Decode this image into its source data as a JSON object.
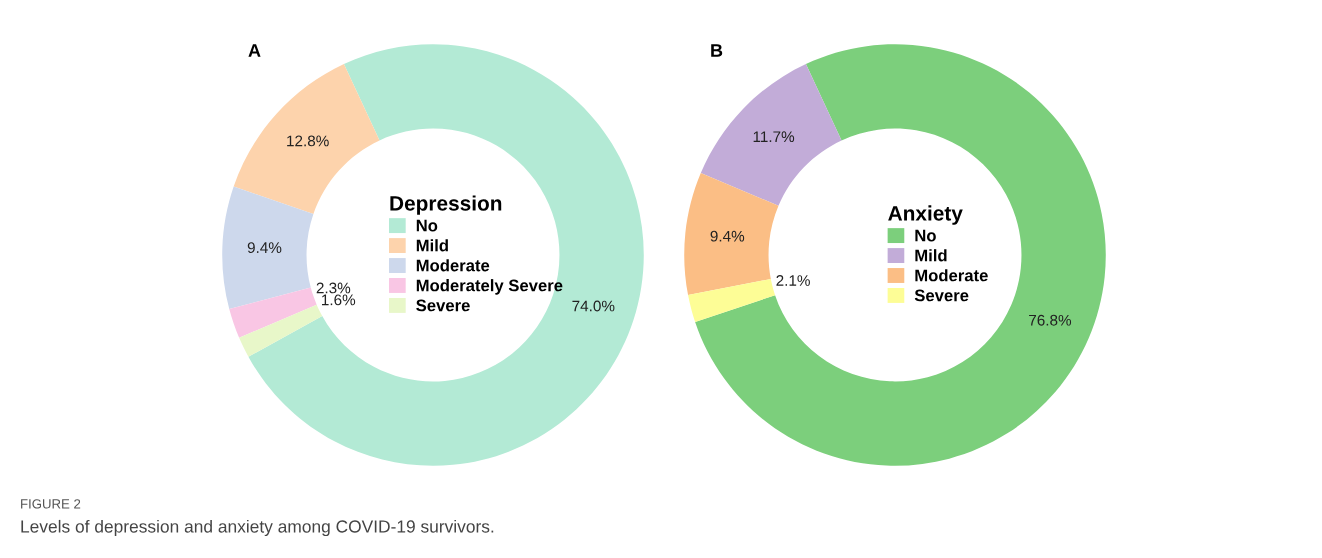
{
  "chart_data": [
    {
      "type": "donut",
      "title": "A",
      "legend_title": "Depression",
      "legend": "center",
      "categories": [
        "No",
        "Mild",
        "Moderate",
        "Moderately Severe",
        "Severe"
      ],
      "values": [
        74.0,
        12.8,
        9.4,
        2.3,
        1.6
      ],
      "value_labels": [
        "74.0%",
        "12.8%",
        "9.4%",
        "2.3%",
        "1.6%"
      ],
      "colors": [
        "#b3ead5",
        "#fdd3ac",
        "#cdd8ec",
        "#f9c6e4",
        "#e8f7c9"
      ],
      "annotations": [
        "FIGURE 2",
        "Levels of depression and anxiety among COVID-19 survivors."
      ]
    },
    {
      "type": "donut",
      "title": "B",
      "legend_title": "Anxiety",
      "legend": "center",
      "categories": [
        "No",
        "Mild",
        "Moderate",
        "Severe"
      ],
      "values": [
        76.8,
        11.7,
        9.4,
        2.1
      ],
      "value_labels": [
        "76.8%",
        "11.7%",
        "9.4%",
        "2.1%"
      ],
      "colors": [
        "#7ccf7c",
        "#c2acd8",
        "#fbbe85",
        "#fdfd96"
      ]
    }
  ]
}
